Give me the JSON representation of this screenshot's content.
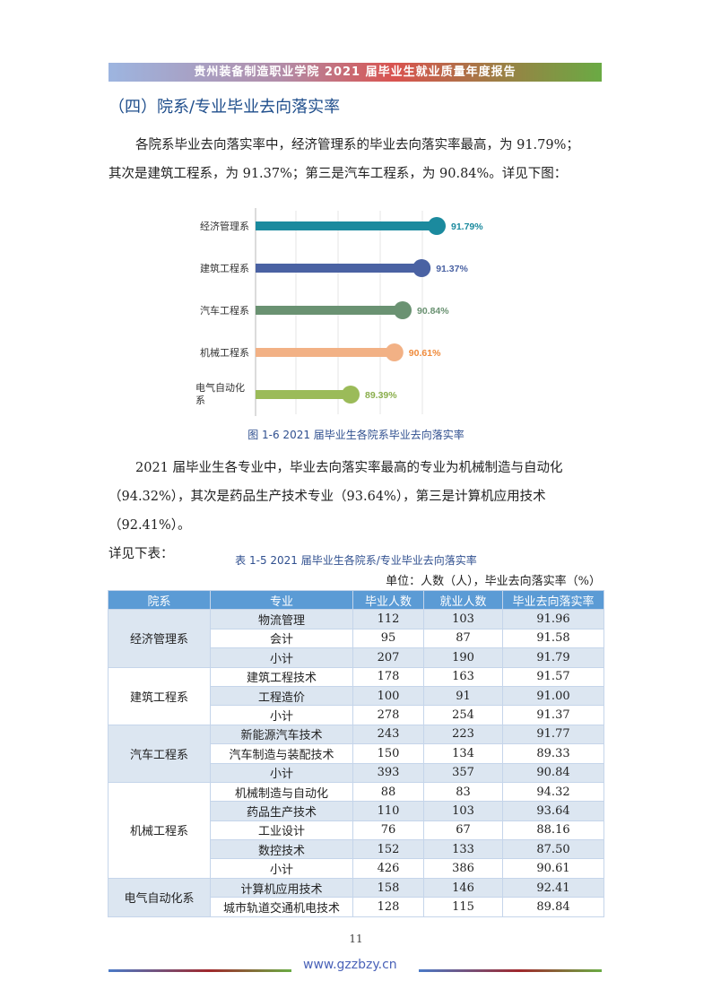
{
  "header": {
    "title": "贵州装备制造职业学院 2021 届毕业生就业质量年度报告"
  },
  "section_title": "（四）院系/专业毕业去向落实率",
  "paragraph1": [
    "各院系毕业去向落实率中，经济管理系的毕业去向落实率最高，为 91.79%；",
    "其次是建筑工程系，为 91.37%；第三是汽车工程系，为 90.84%。详见下图："
  ],
  "chart_data": {
    "type": "bar",
    "orientation": "horizontal",
    "style": "lollipop",
    "categories": [
      "经济管理系",
      "建筑工程系",
      "汽车工程系",
      "机械工程系",
      "电气自动化系"
    ],
    "values": [
      91.79,
      91.37,
      90.84,
      90.61,
      89.39
    ],
    "data_labels": [
      "91.79%",
      "91.37%",
      "90.84%",
      "90.61%",
      "89.39%"
    ],
    "colors": [
      "#1b8a9e",
      "#4a62a3",
      "#6a9272",
      "#f2b185",
      "#9bbb59"
    ],
    "label_colors": [
      "#1b8a9e",
      "#4a62a3",
      "#6a9272",
      "#ef8a3a",
      "#8aae4c"
    ],
    "title": "",
    "xlabel": "",
    "ylabel": ""
  },
  "figure_caption": "图 1-6 2021 届毕业生各院系毕业去向落实率",
  "paragraph2": [
    "2021 届毕业生各专业中，毕业去向落实率最高的专业为机械制造与自动化",
    "（94.32%），其次是药品生产技术专业（93.64%），第三是计算机应用技术（92.41%）。",
    "详见下表："
  ],
  "table_caption": "表 1-5 2021 届毕业生各院系/专业毕业去向落实率",
  "table_unit": "单位：人数（人），毕业去向落实率（%）",
  "table": {
    "headers": [
      "院系",
      "专业",
      "毕业人数",
      "就业人数",
      "毕业去向落实率"
    ],
    "groups": [
      {
        "dept": "经济管理系",
        "rows": [
          [
            "物流管理",
            "112",
            "103",
            "91.96"
          ],
          [
            "会计",
            "95",
            "87",
            "91.58"
          ],
          [
            "小计",
            "207",
            "190",
            "91.79"
          ]
        ]
      },
      {
        "dept": "建筑工程系",
        "rows": [
          [
            "建筑工程技术",
            "178",
            "163",
            "91.57"
          ],
          [
            "工程造价",
            "100",
            "91",
            "91.00"
          ],
          [
            "小计",
            "278",
            "254",
            "91.37"
          ]
        ]
      },
      {
        "dept": "汽车工程系",
        "rows": [
          [
            "新能源汽车技术",
            "243",
            "223",
            "91.77"
          ],
          [
            "汽车制造与装配技术",
            "150",
            "134",
            "89.33"
          ],
          [
            "小计",
            "393",
            "357",
            "90.84"
          ]
        ]
      },
      {
        "dept": "机械工程系",
        "rows": [
          [
            "机械制造与自动化",
            "88",
            "83",
            "94.32"
          ],
          [
            "药品生产技术",
            "110",
            "103",
            "93.64"
          ],
          [
            "工业设计",
            "76",
            "67",
            "88.16"
          ],
          [
            "数控技术",
            "152",
            "133",
            "87.50"
          ],
          [
            "小计",
            "426",
            "386",
            "90.61"
          ]
        ]
      },
      {
        "dept": "电气自动化系",
        "rows": [
          [
            "计算机应用技术",
            "158",
            "146",
            "92.41"
          ],
          [
            "城市轨道交通机电技术",
            "128",
            "115",
            "89.84"
          ]
        ]
      }
    ]
  },
  "footer": {
    "page_number": "11",
    "website": "www.gzzbzy.cn"
  }
}
